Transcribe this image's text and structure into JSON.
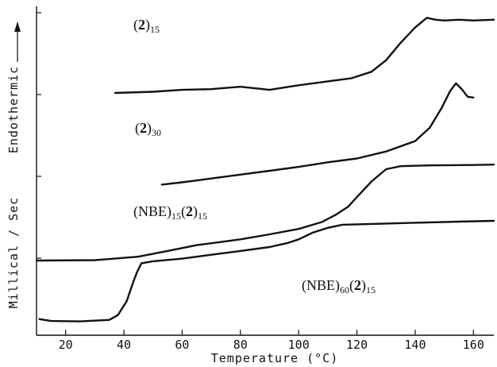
{
  "chart_data": {
    "type": "line",
    "xlabel": "Temperature (°C)",
    "ylabel": "Millical / Sec",
    "ylabel_arrow_text": "Endothermic",
    "xlim": [
      10,
      167
    ],
    "x_ticks": [
      20,
      40,
      60,
      80,
      100,
      120,
      140,
      160
    ],
    "y_ticks_visible": 4,
    "grid": false,
    "series": [
      {
        "label_parts": [
          {
            "t": "(",
            "style": "normal"
          },
          {
            "t": "2",
            "style": "bold"
          },
          {
            "t": ")",
            "style": "normal"
          },
          {
            "t": "15",
            "style": "sub"
          }
        ],
        "points": [
          [
            37,
            6.0
          ],
          [
            50,
            6.03
          ],
          [
            60,
            6.08
          ],
          [
            70,
            6.1
          ],
          [
            80,
            6.16
          ],
          [
            90,
            6.08
          ],
          [
            100,
            6.2
          ],
          [
            110,
            6.3
          ],
          [
            118,
            6.38
          ],
          [
            125,
            6.55
          ],
          [
            130,
            6.85
          ],
          [
            135,
            7.3
          ],
          [
            140,
            7.7
          ],
          [
            144,
            7.95
          ],
          [
            147,
            7.9
          ],
          [
            150,
            7.88
          ],
          [
            155,
            7.9
          ],
          [
            160,
            7.88
          ],
          [
            167,
            7.9
          ]
        ]
      },
      {
        "label_parts": [
          {
            "t": "(",
            "style": "normal"
          },
          {
            "t": "2",
            "style": "bold"
          },
          {
            "t": ")",
            "style": "normal"
          },
          {
            "t": "30",
            "style": "sub"
          }
        ],
        "points": [
          [
            53,
            3.62
          ],
          [
            60,
            3.68
          ],
          [
            70,
            3.78
          ],
          [
            80,
            3.88
          ],
          [
            90,
            3.98
          ],
          [
            100,
            4.08
          ],
          [
            110,
            4.2
          ],
          [
            120,
            4.3
          ],
          [
            130,
            4.48
          ],
          [
            140,
            4.75
          ],
          [
            145,
            5.1
          ],
          [
            149,
            5.6
          ],
          [
            152,
            6.05
          ],
          [
            154,
            6.25
          ],
          [
            156,
            6.1
          ],
          [
            158,
            5.9
          ],
          [
            160,
            5.88
          ]
        ]
      },
      {
        "label_parts": [
          {
            "t": "(NBE)",
            "style": "normal"
          },
          {
            "t": "15",
            "style": "sub"
          },
          {
            "t": "(",
            "style": "normal"
          },
          {
            "t": "2",
            "style": "bold"
          },
          {
            "t": ")",
            "style": "normal"
          },
          {
            "t": "15",
            "style": "sub"
          }
        ],
        "points": [
          [
            10,
            1.65
          ],
          [
            30,
            1.66
          ],
          [
            45,
            1.75
          ],
          [
            55,
            1.9
          ],
          [
            65,
            2.05
          ],
          [
            80,
            2.2
          ],
          [
            90,
            2.33
          ],
          [
            100,
            2.47
          ],
          [
            108,
            2.65
          ],
          [
            113,
            2.85
          ],
          [
            117,
            3.05
          ],
          [
            120,
            3.3
          ],
          [
            125,
            3.7
          ],
          [
            130,
            4.02
          ],
          [
            135,
            4.1
          ],
          [
            145,
            4.12
          ],
          [
            160,
            4.13
          ],
          [
            167,
            4.14
          ]
        ]
      },
      {
        "label_parts": [
          {
            "t": "(NBE)",
            "style": "normal"
          },
          {
            "t": "60",
            "style": "sub"
          },
          {
            "t": "(",
            "style": "normal"
          },
          {
            "t": "2",
            "style": "bold"
          },
          {
            "t": ")",
            "style": "normal"
          },
          {
            "t": "15",
            "style": "sub"
          }
        ],
        "points": [
          [
            11,
            0.13
          ],
          [
            15,
            0.08
          ],
          [
            25,
            0.07
          ],
          [
            35,
            0.11
          ],
          [
            38,
            0.24
          ],
          [
            41,
            0.6
          ],
          [
            43,
            1.05
          ],
          [
            44.5,
            1.35
          ],
          [
            46,
            1.58
          ],
          [
            50,
            1.63
          ],
          [
            60,
            1.7
          ],
          [
            70,
            1.8
          ],
          [
            80,
            1.9
          ],
          [
            90,
            2.0
          ],
          [
            96,
            2.1
          ],
          [
            100,
            2.2
          ],
          [
            105,
            2.38
          ],
          [
            110,
            2.5
          ],
          [
            115,
            2.58
          ],
          [
            125,
            2.6
          ],
          [
            140,
            2.63
          ],
          [
            155,
            2.66
          ],
          [
            167,
            2.68
          ]
        ]
      }
    ]
  }
}
